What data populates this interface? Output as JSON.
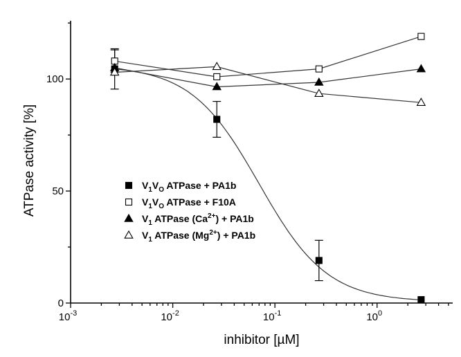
{
  "chart_data": {
    "type": "scatter",
    "xlabel": "inhibitor [µM]",
    "ylabel": "ATPase activity [%]",
    "x_scale": "log",
    "xlim": [
      0.001,
      5.5
    ],
    "ylim": [
      0,
      126
    ],
    "x_ticks": [
      {
        "value": 0.001,
        "base": "10",
        "exp": "-3"
      },
      {
        "value": 0.01,
        "base": "10",
        "exp": "-2"
      },
      {
        "value": 0.1,
        "base": "10",
        "exp": "-1"
      },
      {
        "value": 1,
        "base": "10",
        "exp": "0"
      }
    ],
    "y_ticks": [
      {
        "value": 0,
        "label": "0"
      },
      {
        "value": 50,
        "label": "50"
      },
      {
        "value": 100,
        "label": "100"
      }
    ],
    "grid": false,
    "legend_position": "lower-left",
    "series": [
      {
        "name": "V1VO ATPase + PA1b",
        "legend": {
          "a": "V",
          "a_sub": "1",
          "b": "V",
          "b_sub": "O",
          "rest": " ATPase + PA1b"
        },
        "marker": "filled-square",
        "x": [
          0.0027,
          0.027,
          0.27,
          2.7
        ],
        "y": [
          104.5,
          82,
          19,
          1.5
        ],
        "yerr": [
          9,
          8,
          9,
          0
        ],
        "fit": {
          "type": "sigmoid",
          "top": 106,
          "bottom": 0.5,
          "ic50": 0.07,
          "hill": 1.3
        }
      },
      {
        "name": "V1VO ATPase + F10A",
        "legend": {
          "a": "V",
          "a_sub": "1",
          "b": "V",
          "b_sub": "O",
          "rest": " ATPase + F10A"
        },
        "marker": "open-square",
        "x": [
          0.0027,
          0.027,
          0.27,
          2.7
        ],
        "y": [
          108,
          101,
          104.5,
          119
        ],
        "yerr": [
          5,
          0,
          0,
          0
        ]
      },
      {
        "name": "V1 ATPase (Ca2+) + PA1b",
        "legend": {
          "a": "V",
          "a_sub": "1",
          "b": "",
          "b_sub": "",
          "rest": " ATPase (Ca",
          "sup": "2+",
          "tail": ") + PA1b"
        },
        "marker": "filled-triangle",
        "x": [
          0.0027,
          0.027,
          0.27,
          2.7
        ],
        "y": [
          105,
          96.5,
          98.5,
          104.5
        ],
        "yerr": [
          0,
          0,
          0,
          0
        ]
      },
      {
        "name": "V1 ATPase (Mg2+) + PA1b",
        "legend": {
          "a": "V",
          "a_sub": "1",
          "b": "",
          "b_sub": "",
          "rest": " ATPase (Mg",
          "sup": "2+",
          "tail": ") + PA1b"
        },
        "marker": "open-triangle",
        "x": [
          0.0027,
          0.027,
          0.27,
          2.7
        ],
        "y": [
          103,
          105.5,
          93.5,
          89.5
        ],
        "yerr": [
          0,
          0,
          0,
          0
        ]
      }
    ]
  }
}
